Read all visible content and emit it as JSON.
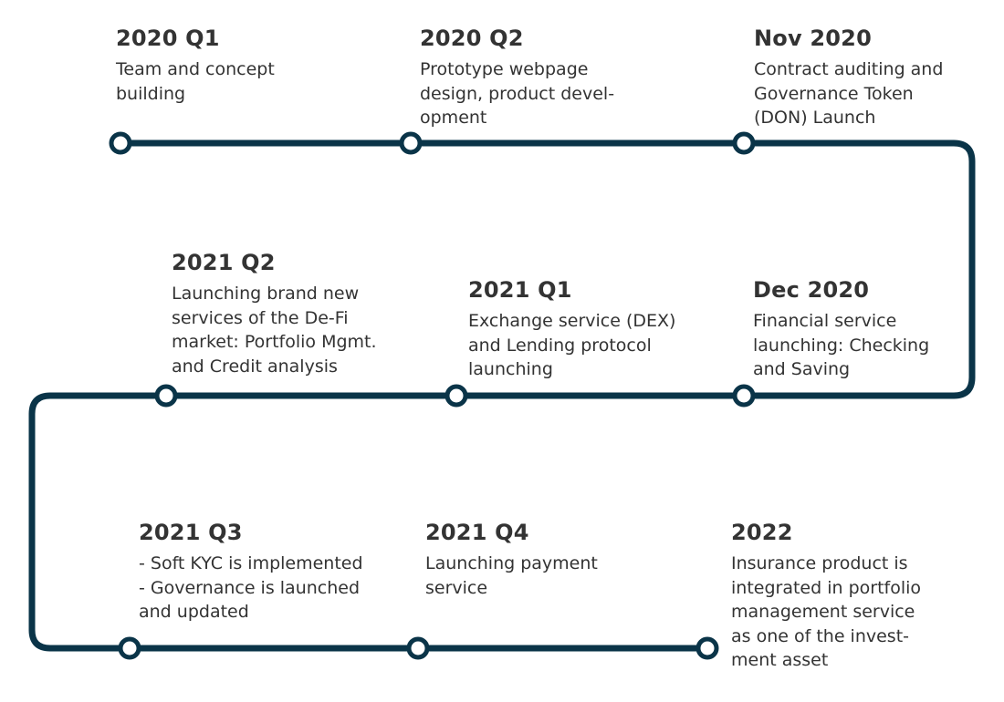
{
  "colors": {
    "track": "#0a3448",
    "node_fill": "#ffffff",
    "text": "#333333"
  },
  "milestones": [
    {
      "title": "2020 Q1",
      "lines": [
        "Team and concept",
        "building"
      ]
    },
    {
      "title": "2020 Q2",
      "lines": [
        "Prototype webpage",
        "design, product devel-",
        "opment"
      ]
    },
    {
      "title": "Nov 2020",
      "lines": [
        "Contract auditing and",
        "Governance Token",
        "(DON) Launch"
      ]
    },
    {
      "title": "Dec 2020",
      "lines": [
        "Financial service",
        "launching: Checking",
        "and Saving"
      ]
    },
    {
      "title": "2021 Q1",
      "lines": [
        "Exchange service (DEX)",
        "and Lending protocol",
        "launching"
      ]
    },
    {
      "title": "2021 Q2",
      "lines": [
        "Launching brand new",
        "services of the De-Fi",
        "market: Portfolio Mgmt.",
        "and Credit analysis"
      ]
    },
    {
      "title": "2021 Q3",
      "lines": [
        "- Soft KYC is implemented",
        "- Governance is launched",
        "and updated"
      ]
    },
    {
      "title": "2021 Q4",
      "lines": [
        "Launching payment",
        "service"
      ]
    },
    {
      "title": "2022",
      "lines": [
        "Insurance product is",
        "integrated in portfolio",
        "management service",
        "as one of the invest-",
        "ment asset"
      ]
    }
  ]
}
